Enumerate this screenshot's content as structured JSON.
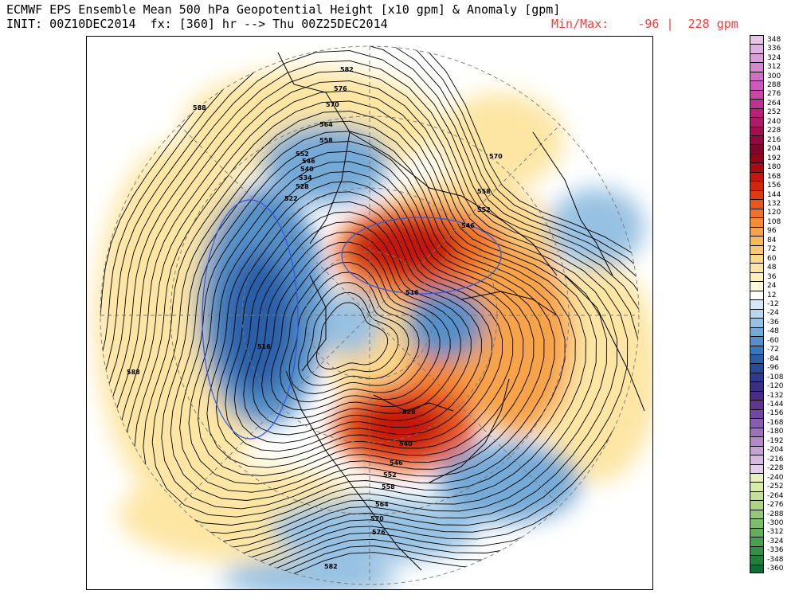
{
  "header": {
    "title": "ECMWF EPS Ensemble Mean 500 hPa Geopotential Height [x10 gpm] & Anomaly [gpm]",
    "init_line": "INIT: 00Z10DEC2014  fx: [360] hr --> Thu 00Z25DEC2014",
    "minmax_label": "Min/Max:",
    "min_value": "-96",
    "separator": "|",
    "max_value": "228 gpm"
  },
  "map": {
    "projection": "north-polar-stereographic",
    "contour_labels": [
      "582",
      "576",
      "570",
      "564",
      "558",
      "552",
      "546",
      "540",
      "534",
      "528",
      "522",
      "588",
      "546",
      "552",
      "558",
      "570",
      "516",
      "516",
      "588",
      "528",
      "540",
      "546",
      "552",
      "558",
      "564",
      "570",
      "576",
      "582"
    ]
  },
  "colorbar": {
    "labels": [
      "348",
      "336",
      "324",
      "312",
      "300",
      "288",
      "276",
      "264",
      "252",
      "240",
      "228",
      "216",
      "204",
      "192",
      "180",
      "168",
      "156",
      "144",
      "132",
      "120",
      "108",
      "96",
      "84",
      "72",
      "60",
      "48",
      "36",
      "24",
      "12",
      "-12",
      "-24",
      "-36",
      "-48",
      "-60",
      "-72",
      "-84",
      "-96",
      "-108",
      "-120",
      "-132",
      "-144",
      "-156",
      "-168",
      "-180",
      "-192",
      "-204",
      "-216",
      "-228",
      "-240",
      "-252",
      "-264",
      "-276",
      "-288",
      "-300",
      "-312",
      "-324",
      "-336",
      "-348",
      "-360"
    ],
    "colors": [
      "#e6c8e6",
      "#dfb3df",
      "#d89ed8",
      "#d488d0",
      "#d070c4",
      "#cc5ab8",
      "#c846a8",
      "#c03090",
      "#b82078",
      "#b01868",
      "#a01050",
      "#900840",
      "#80062e",
      "#900818",
      "#a80c10",
      "#c41610",
      "#d42410",
      "#e03a14",
      "#e8561c",
      "#f07228",
      "#f48c38",
      "#f7a34a",
      "#f8b85e",
      "#fac974",
      "#fcd88a",
      "#fde6a4",
      "#fef0bc",
      "#fff8d6",
      "#ffffff",
      "#d6e8f5",
      "#b9d6ec",
      "#97c1e2",
      "#74a9d6",
      "#5590c8",
      "#3a76ba",
      "#2a5fa8",
      "#284a98",
      "#2e3a8c",
      "#3a2f82",
      "#4a2c86",
      "#5e3690",
      "#74479e",
      "#8a5cac",
      "#9e72ba",
      "#b28ac8",
      "#c4a2d4",
      "#d4bade",
      "#e2d0ea",
      "#e8f0c0",
      "#d8eaa8",
      "#c4e096",
      "#acd486",
      "#94c878",
      "#7cbc6a",
      "#62ae5c",
      "#4aa050",
      "#349046",
      "#20803c",
      "#0e6e32"
    ]
  }
}
